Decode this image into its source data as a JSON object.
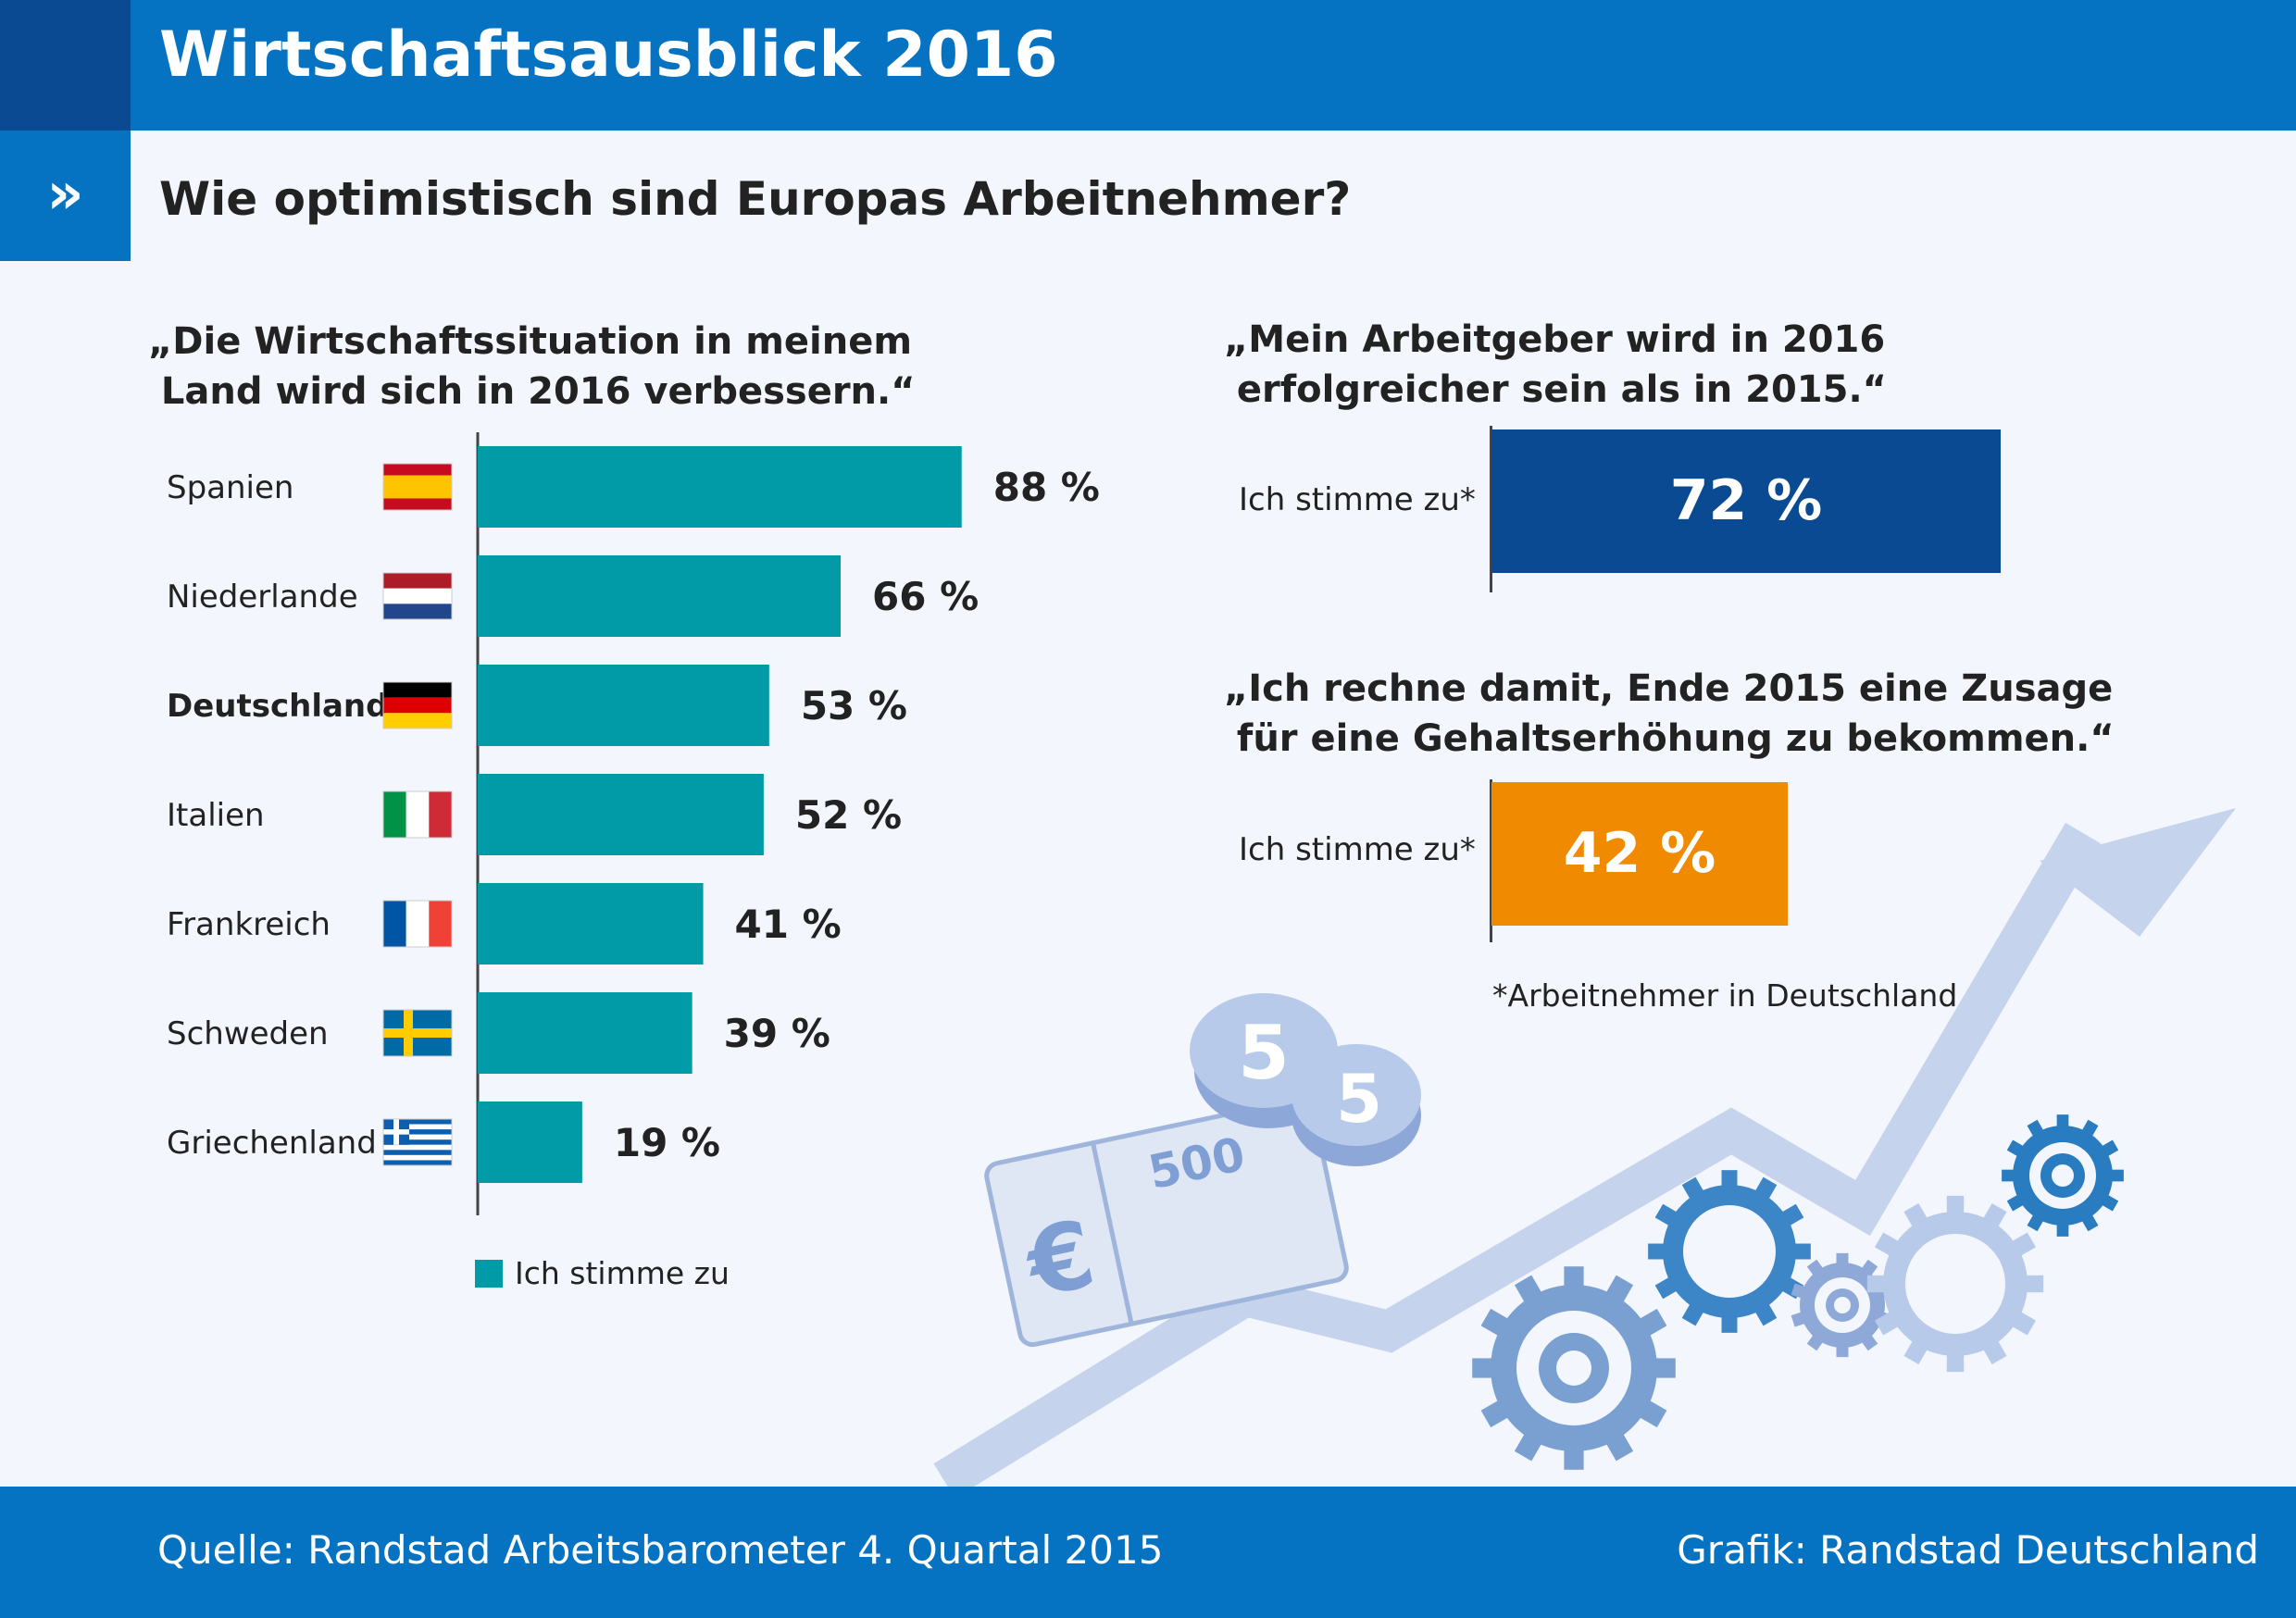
{
  "header": {
    "title": "Wirtschaftsausblick 2016",
    "arrows": "»",
    "subtitle": "Wie optimistisch sind Europas Arbeitnehmer?"
  },
  "left_panel": {
    "quote": "„Die Wirtschaftssituation in meinem\n Land wird sich in 2016 verbessern.“",
    "legend_label": "Ich stimme zu"
  },
  "right_panel": {
    "quote1": "„Mein Arbeitgeber wird in 2016\n erfolgreicher sein als in 2015.“",
    "agree_label1": "Ich stimme zu*",
    "value1_label": "72 %",
    "quote2": "„Ich rechne damit, Ende 2015 eine Zusage\n für eine Gehaltserhöhung zu bekommen.“",
    "agree_label2": "Ich stimme zu*",
    "value2_label": "42 %",
    "footnote": "*Arbeitnehmer in Deutschland"
  },
  "illustration": {
    "coin_label": "5",
    "bill_label": "500",
    "currency_symbol": "€"
  },
  "footer": {
    "source": "Quelle: Randstad Arbeitsbarometer 4. Quartal 2015",
    "credit": "Grafik: Randstad Deutschland"
  },
  "colors": {
    "brand_blue": "#0673c2",
    "dark_blue": "#0a4a93",
    "teal": "#009ba6",
    "orange": "#f08a00",
    "light_blue": "#c5d4ec"
  },
  "chart_data": [
    {
      "type": "bar",
      "orientation": "horizontal",
      "categories": [
        "Spanien",
        "Niederlande",
        "Deutschland",
        "Italien",
        "Frankreich",
        "Schweden",
        "Griechenland"
      ],
      "values": [
        88,
        66,
        53,
        52,
        41,
        39,
        19
      ],
      "value_labels": [
        "88 %",
        "66 %",
        "53 %",
        "52 %",
        "41 %",
        "39 %",
        "19 %"
      ],
      "highlight": "Deutschland",
      "flags": [
        "flag-spain-icon",
        "flag-netherlands-icon",
        "flag-germany-icon",
        "flag-italy-icon",
        "flag-france-icon",
        "flag-sweden-icon",
        "flag-greece-icon"
      ],
      "series": [
        {
          "name": "Ich stimme zu",
          "values": [
            88,
            66,
            53,
            52,
            41,
            39,
            19
          ]
        }
      ],
      "title": "„Die Wirtschaftssituation in meinem Land wird sich in 2016 verbessern.“"
    },
    {
      "type": "bar",
      "orientation": "horizontal",
      "categories": [
        "Ich stimme zu*"
      ],
      "values": [
        72
      ],
      "title": "„Mein Arbeitgeber wird in 2016 erfolgreicher sein als in 2015.“"
    },
    {
      "type": "bar",
      "orientation": "horizontal",
      "categories": [
        "Ich stimme zu*"
      ],
      "values": [
        42
      ],
      "title": "„Ich rechne damit, Ende 2015 eine Zusage für eine Gehaltserhöhung zu bekommen.“"
    }
  ]
}
